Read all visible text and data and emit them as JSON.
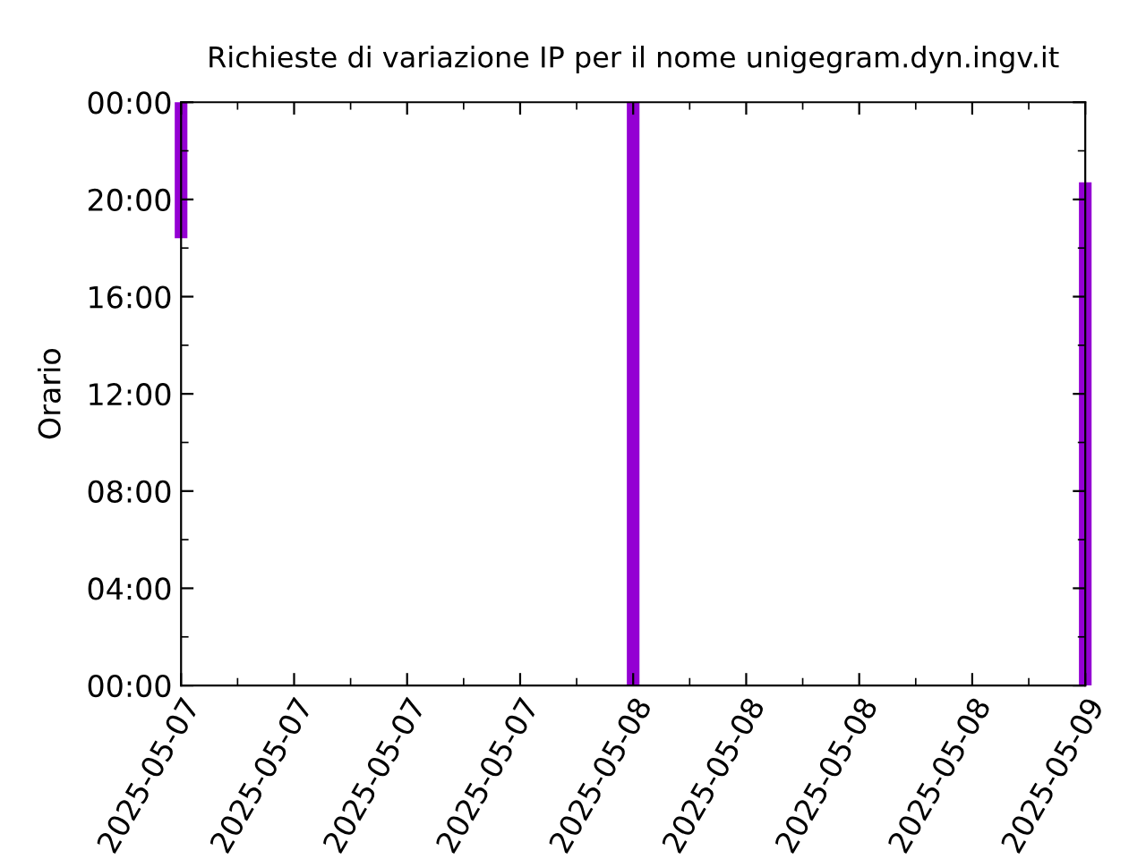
{
  "chart_data": {
    "type": "bar",
    "title": "Richieste di variazione IP per il nome unigegram.dyn.ingv.it",
    "ylabel": "Orario",
    "x": [
      "2025-05-07T00:00",
      "2025-05-08T00:00",
      "2025-05-09T00:00"
    ],
    "base": [
      18.4,
      0,
      0
    ],
    "values": [
      5.6,
      24,
      20.7
    ],
    "color": "#9400d3",
    "xlim": [
      "2025-05-07T00:00",
      "2025-05-09T00:00"
    ],
    "xticks": [
      {
        "value": "2025-05-07T00:00",
        "label": "2025-05-07"
      },
      {
        "value": "2025-05-07T06:00",
        "label": "2025-05-07"
      },
      {
        "value": "2025-05-07T12:00",
        "label": "2025-05-07"
      },
      {
        "value": "2025-05-07T18:00",
        "label": "2025-05-07"
      },
      {
        "value": "2025-05-08T00:00",
        "label": "2025-05-08"
      },
      {
        "value": "2025-05-08T06:00",
        "label": "2025-05-08"
      },
      {
        "value": "2025-05-08T12:00",
        "label": "2025-05-08"
      },
      {
        "value": "2025-05-08T18:00",
        "label": "2025-05-08"
      },
      {
        "value": "2025-05-09T00:00",
        "label": "2025-05-09"
      }
    ],
    "ylim": [
      0,
      24
    ],
    "yticks": [
      {
        "value": 0,
        "label": "00:00"
      },
      {
        "value": 4,
        "label": "04:00"
      },
      {
        "value": 8,
        "label": "08:00"
      },
      {
        "value": 12,
        "label": "12:00"
      },
      {
        "value": 16,
        "label": "16:00"
      },
      {
        "value": 20,
        "label": "20:00"
      },
      {
        "value": 24,
        "label": "00:00"
      }
    ],
    "grid": false,
    "legend": false
  }
}
